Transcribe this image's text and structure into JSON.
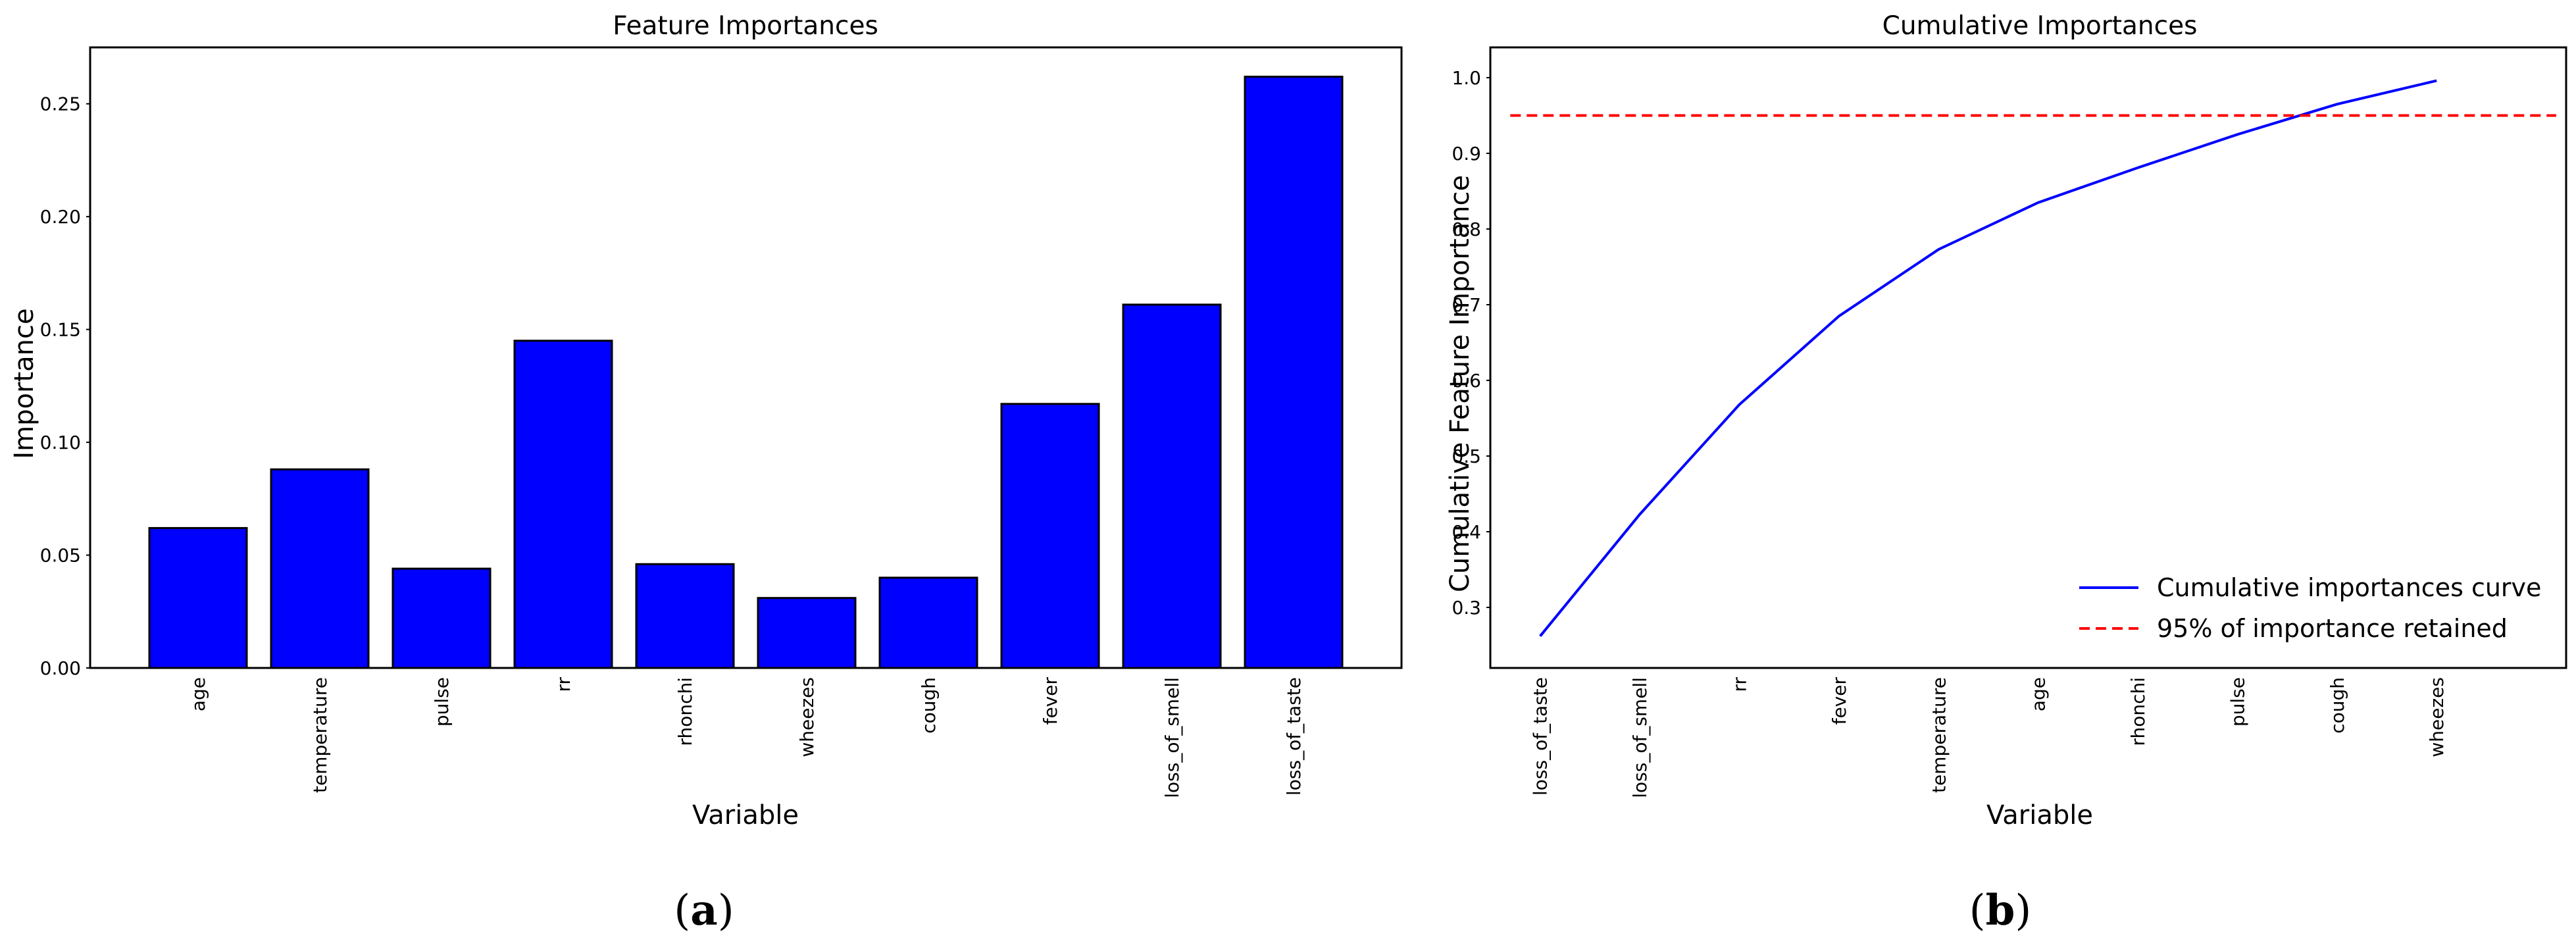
{
  "chart_data": [
    {
      "type": "bar",
      "title": "Feature Importances",
      "xlabel": "Variable",
      "ylabel": "Importance",
      "categories": [
        "age",
        "temperature",
        "pulse",
        "rr",
        "rhonchi",
        "wheezes",
        "cough",
        "fever",
        "loss_of_smell",
        "loss_of_taste"
      ],
      "values": [
        0.062,
        0.088,
        0.044,
        0.145,
        0.046,
        0.031,
        0.04,
        0.117,
        0.161,
        0.262
      ],
      "ylim": [
        0,
        0.275
      ],
      "yticks": [
        0.0,
        0.05,
        0.1,
        0.15,
        0.2,
        0.25
      ],
      "ytick_labels": [
        "0.00",
        "0.05",
        "0.10",
        "0.15",
        "0.20",
        "0.25"
      ],
      "bar_color": "#0000ff",
      "edge_color": "#000000",
      "grid": false,
      "panel_label": "a"
    },
    {
      "type": "line",
      "title": "Cumulative Importances",
      "xlabel": "Variable",
      "ylabel": "Cumulative Feature Importance",
      "categories": [
        "loss_of_taste",
        "loss_of_smell",
        "rr",
        "fever",
        "temperature",
        "age",
        "rhonchi",
        "pulse",
        "cough",
        "wheezes"
      ],
      "xlim": [
        -0.5,
        10.3
      ],
      "ylim": [
        0.22,
        1.04
      ],
      "yticks": [
        0.3,
        0.4,
        0.5,
        0.6,
        0.7,
        0.8,
        0.9,
        1.0
      ],
      "ytick_labels": [
        "0.3",
        "0.4",
        "0.5",
        "0.6",
        "0.7",
        "0.8",
        "0.9",
        "1.0"
      ],
      "grid": false,
      "series": [
        {
          "name": "Cumulative importances curve",
          "x": [
            0,
            1,
            2,
            3,
            4,
            5,
            6,
            7,
            8,
            9
          ],
          "values": [
            0.262,
            0.423,
            0.568,
            0.685,
            0.773,
            0.835,
            0.881,
            0.925,
            0.965,
            0.996
          ],
          "color": "#0000ff",
          "style": "solid"
        },
        {
          "name": "95% of importance retained",
          "x": [
            -0.3,
            10.2
          ],
          "values": [
            0.95,
            0.95
          ],
          "color": "#ff0000",
          "style": "dashed"
        }
      ],
      "legend_position": "lower-right",
      "panel_label": "b"
    }
  ]
}
